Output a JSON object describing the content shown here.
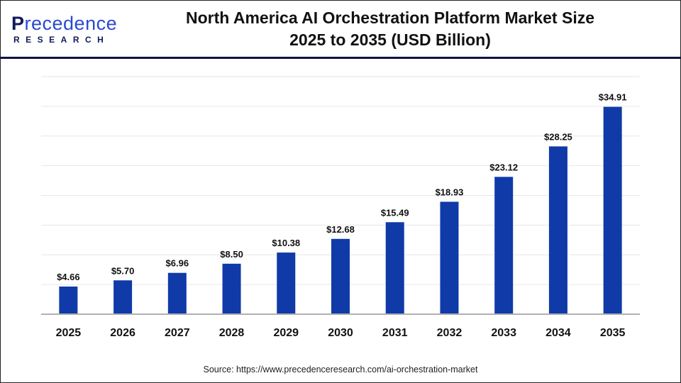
{
  "header": {
    "logo_text": "Precedence Research",
    "title_line1": "North America AI Orchestration Platform Market Size",
    "title_line2": "2025 to 2035 (USD Billion)"
  },
  "source": "Source: https://www.precedenceresearch.com/ai-orchestration-market",
  "colors": {
    "bar": "#0f3aa8",
    "grid": "#e6e6e6",
    "axis": "#b0b0b0",
    "header_rule": "#0d1440"
  },
  "chart_data": {
    "type": "bar",
    "title": "North America AI Orchestration Platform Market Size 2025 to 2035 (USD Billion)",
    "categories": [
      "2025",
      "2026",
      "2027",
      "2028",
      "2029",
      "2030",
      "2031",
      "2032",
      "2033",
      "2034",
      "2035"
    ],
    "values": [
      4.66,
      5.7,
      6.96,
      8.5,
      10.38,
      12.68,
      15.49,
      18.93,
      23.12,
      28.25,
      34.91
    ],
    "labels": [
      "$4.66",
      "$5.70",
      "$6.96",
      "$8.50",
      "$10.38",
      "$12.68",
      "$15.49",
      "$18.93",
      "$23.12",
      "$28.25",
      "$34.91"
    ],
    "ylim": [
      0,
      40
    ],
    "grid_step": 5,
    "grid": true,
    "xlabel": "",
    "ylabel": ""
  }
}
